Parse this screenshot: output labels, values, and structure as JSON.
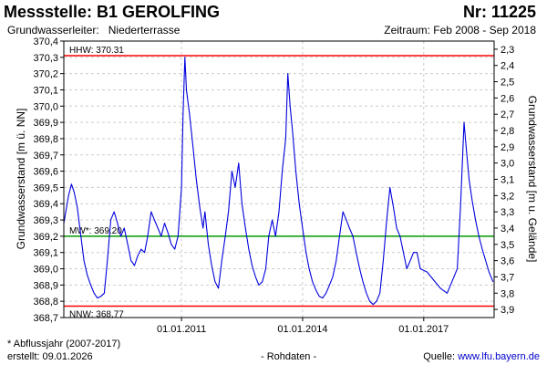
{
  "header": {
    "title": "Messstelle: B1 GEROLFING",
    "number": "Nr: 11225",
    "aquifer_label": "Grundwasserleiter:",
    "aquifer_value": "Niederterrasse",
    "period": "Zeitraum: Feb 2008 - Sep 2018"
  },
  "footer": {
    "note": "* Abflussjahr (2007-2017)",
    "created": "erstellt:  09.01.2026",
    "raw_data": "- Rohdaten -",
    "source_label": "Quelle:",
    "source_link": "www.lfu.bayern.de"
  },
  "colors": {
    "series": "#0000dd",
    "hhw": "#ff0000",
    "nnw": "#ff0000",
    "mw": "#009900",
    "grid": "#cccccc",
    "frame": "#000000"
  },
  "chart_data": {
    "type": "line",
    "title": "",
    "xlabel": "",
    "ylabel_left": "Grundwasserstand [m ü. NN]",
    "ylabel_right": "Grundwasserstand [m u. Gelände]",
    "xlim": [
      "2008-02-01",
      "2018-09-30"
    ],
    "ylim_left": [
      368.7,
      370.4
    ],
    "ylim_right": [
      3.95,
      2.25
    ],
    "left_ticks": [
      "370,4",
      "370,3",
      "370,2",
      "370,1",
      "370,0",
      "369,9",
      "369,8",
      "369,7",
      "369,6",
      "369,5",
      "369,4",
      "369,3",
      "369,2",
      "369,1",
      "369,0",
      "368,9",
      "368,8",
      "368,7"
    ],
    "right_ticks": [
      "2,3",
      "2,4",
      "2,5",
      "2,6",
      "2,7",
      "2,8",
      "2,9",
      "3,0",
      "3,1",
      "3,2",
      "3,3",
      "3,4",
      "3,5",
      "3,6",
      "3,7",
      "3,8",
      "3,9"
    ],
    "x_ticks": [
      {
        "date": "2011-01-01",
        "label": "01.01.2011"
      },
      {
        "date": "2014-01-01",
        "label": "01.01.2014"
      },
      {
        "date": "2017-01-01",
        "label": "01.01.2017"
      }
    ],
    "grid": true,
    "reference_lines": [
      {
        "name": "HHW",
        "label": "HHW: 370.31",
        "value": 370.31,
        "color": "#ff0000"
      },
      {
        "name": "MW",
        "label": "MW*: 369.20",
        "value": 369.2,
        "color": "#009900"
      },
      {
        "name": "NNW",
        "label": "NNW: 368.77",
        "value": 368.77,
        "color": "#ff0000"
      }
    ],
    "series": [
      {
        "color": "#0000dd",
        "points": [
          [
            "2008-02-01",
            369.28
          ],
          [
            "2008-03-15",
            369.45
          ],
          [
            "2008-04-10",
            369.52
          ],
          [
            "2008-05-05",
            369.47
          ],
          [
            "2008-06-01",
            369.38
          ],
          [
            "2008-07-01",
            369.22
          ],
          [
            "2008-08-01",
            369.05
          ],
          [
            "2008-09-01",
            368.96
          ],
          [
            "2008-10-01",
            368.9
          ],
          [
            "2008-11-01",
            368.85
          ],
          [
            "2008-12-01",
            368.82
          ],
          [
            "2009-01-01",
            368.83
          ],
          [
            "2009-02-01",
            368.85
          ],
          [
            "2009-03-01",
            369.05
          ],
          [
            "2009-04-01",
            369.3
          ],
          [
            "2009-05-01",
            369.35
          ],
          [
            "2009-06-01",
            369.28
          ],
          [
            "2009-07-01",
            369.2
          ],
          [
            "2009-08-01",
            369.25
          ],
          [
            "2009-09-01",
            369.15
          ],
          [
            "2009-10-01",
            369.05
          ],
          [
            "2009-11-01",
            369.02
          ],
          [
            "2009-12-01",
            369.08
          ],
          [
            "2010-01-01",
            369.12
          ],
          [
            "2010-02-01",
            369.1
          ],
          [
            "2010-03-01",
            369.2
          ],
          [
            "2010-04-01",
            369.35
          ],
          [
            "2010-05-01",
            369.3
          ],
          [
            "2010-06-01",
            369.25
          ],
          [
            "2010-07-01",
            369.2
          ],
          [
            "2010-08-01",
            369.28
          ],
          [
            "2010-09-01",
            369.22
          ],
          [
            "2010-10-01",
            369.15
          ],
          [
            "2010-11-01",
            369.12
          ],
          [
            "2010-12-01",
            369.2
          ],
          [
            "2011-01-01",
            369.5
          ],
          [
            "2011-01-15",
            369.95
          ],
          [
            "2011-02-01",
            370.3
          ],
          [
            "2011-02-15",
            370.1
          ],
          [
            "2011-03-15",
            369.95
          ],
          [
            "2011-04-15",
            369.75
          ],
          [
            "2011-05-15",
            369.55
          ],
          [
            "2011-06-15",
            369.38
          ],
          [
            "2011-07-15",
            369.25
          ],
          [
            "2011-08-01",
            369.35
          ],
          [
            "2011-09-01",
            369.15
          ],
          [
            "2011-10-01",
            369.02
          ],
          [
            "2011-11-01",
            368.92
          ],
          [
            "2011-12-01",
            368.88
          ],
          [
            "2012-01-01",
            369.05
          ],
          [
            "2012-02-01",
            369.2
          ],
          [
            "2012-03-01",
            369.35
          ],
          [
            "2012-04-01",
            369.6
          ],
          [
            "2012-05-01",
            369.5
          ],
          [
            "2012-06-01",
            369.65
          ],
          [
            "2012-07-01",
            369.4
          ],
          [
            "2012-08-01",
            369.25
          ],
          [
            "2012-09-01",
            369.12
          ],
          [
            "2012-10-01",
            369.02
          ],
          [
            "2012-11-01",
            368.95
          ],
          [
            "2012-12-01",
            368.9
          ],
          [
            "2013-01-01",
            368.92
          ],
          [
            "2013-02-01",
            369.0
          ],
          [
            "2013-03-01",
            369.2
          ],
          [
            "2013-04-01",
            369.3
          ],
          [
            "2013-05-01",
            369.2
          ],
          [
            "2013-06-01",
            369.35
          ],
          [
            "2013-07-01",
            369.6
          ],
          [
            "2013-08-01",
            369.8
          ],
          [
            "2013-08-20",
            370.2
          ],
          [
            "2013-09-10",
            370.0
          ],
          [
            "2013-10-01",
            369.85
          ],
          [
            "2013-11-01",
            369.6
          ],
          [
            "2013-12-01",
            369.4
          ],
          [
            "2014-01-01",
            369.25
          ],
          [
            "2014-02-01",
            369.1
          ],
          [
            "2014-03-01",
            369.0
          ],
          [
            "2014-04-01",
            368.92
          ],
          [
            "2014-05-01",
            368.87
          ],
          [
            "2014-06-01",
            368.83
          ],
          [
            "2014-07-01",
            368.82
          ],
          [
            "2014-08-01",
            368.85
          ],
          [
            "2014-09-01",
            368.9
          ],
          [
            "2014-10-01",
            368.95
          ],
          [
            "2014-11-01",
            369.05
          ],
          [
            "2014-12-01",
            369.2
          ],
          [
            "2015-01-01",
            369.35
          ],
          [
            "2015-02-01",
            369.3
          ],
          [
            "2015-03-01",
            369.25
          ],
          [
            "2015-04-01",
            369.2
          ],
          [
            "2015-05-01",
            369.1
          ],
          [
            "2015-06-01",
            369.0
          ],
          [
            "2015-07-01",
            368.92
          ],
          [
            "2015-08-01",
            368.85
          ],
          [
            "2015-09-01",
            368.8
          ],
          [
            "2015-10-01",
            368.78
          ],
          [
            "2015-11-01",
            368.8
          ],
          [
            "2015-12-01",
            368.85
          ],
          [
            "2016-01-01",
            369.05
          ],
          [
            "2016-02-01",
            369.3
          ],
          [
            "2016-03-01",
            369.5
          ],
          [
            "2016-04-01",
            369.38
          ],
          [
            "2016-05-01",
            369.25
          ],
          [
            "2016-06-01",
            369.2
          ],
          [
            "2016-07-01",
            369.1
          ],
          [
            "2016-08-01",
            369.0
          ],
          [
            "2016-09-01",
            369.05
          ],
          [
            "2016-10-01",
            369.1
          ],
          [
            "2016-11-01",
            369.1
          ],
          [
            "2016-12-01",
            369.0
          ],
          [
            "2017-02-01",
            368.98
          ],
          [
            "2017-04-01",
            368.93
          ],
          [
            "2017-06-01",
            368.88
          ],
          [
            "2017-08-01",
            368.85
          ],
          [
            "2017-10-01",
            368.95
          ],
          [
            "2017-11-01",
            369.0
          ],
          [
            "2017-12-01",
            369.4
          ],
          [
            "2018-01-01",
            369.9
          ],
          [
            "2018-01-20",
            369.75
          ],
          [
            "2018-02-15",
            369.55
          ],
          [
            "2018-03-15",
            369.42
          ],
          [
            "2018-04-15",
            369.3
          ],
          [
            "2018-05-15",
            369.2
          ],
          [
            "2018-06-15",
            369.12
          ],
          [
            "2018-07-15",
            369.05
          ],
          [
            "2018-08-15",
            368.98
          ],
          [
            "2018-09-20",
            368.92
          ]
        ]
      }
    ]
  }
}
